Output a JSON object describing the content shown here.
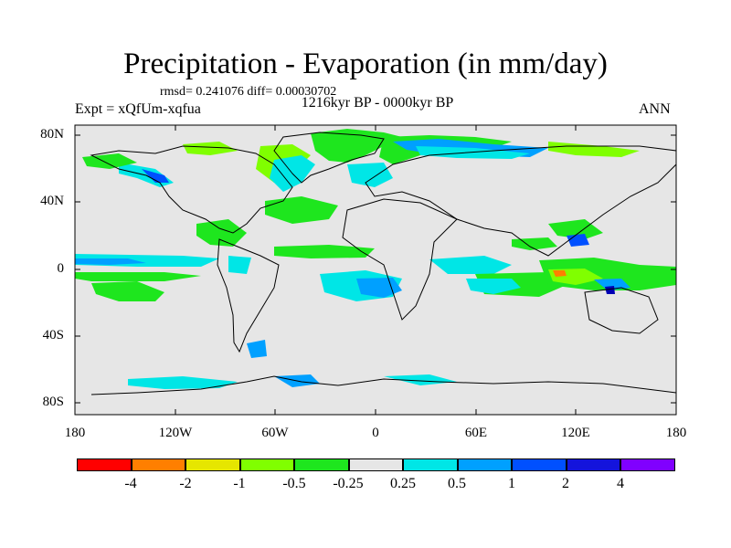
{
  "title": "Precipitation - Evaporation (in mm/day)",
  "stats": "rmsd= 0.241076 diff= 0.00030702",
  "period": "1216kyr BP - 0000kyr BP",
  "expt": "Expt = xQfUm-xqfua",
  "season": "ANN",
  "y_labels": [
    "80N",
    "40N",
    "0",
    "40S",
    "80S"
  ],
  "x_labels": [
    "180",
    "120W",
    "60W",
    "0",
    "60E",
    "120E",
    "180"
  ],
  "colorbar": {
    "colors": [
      "#ff0000",
      "#ff7f00",
      "#e6e600",
      "#80ff00",
      "#1ee61e",
      "#e6e6e6",
      "#00e6e6",
      "#00a0ff",
      "#0050ff",
      "#1414dc",
      "#0000b4",
      "#8000ff"
    ],
    "labels": [
      "-4",
      "-2",
      "-1",
      "-0.5",
      "-0.25",
      "0.25",
      "0.5",
      "1",
      "2",
      "4"
    ]
  }
}
